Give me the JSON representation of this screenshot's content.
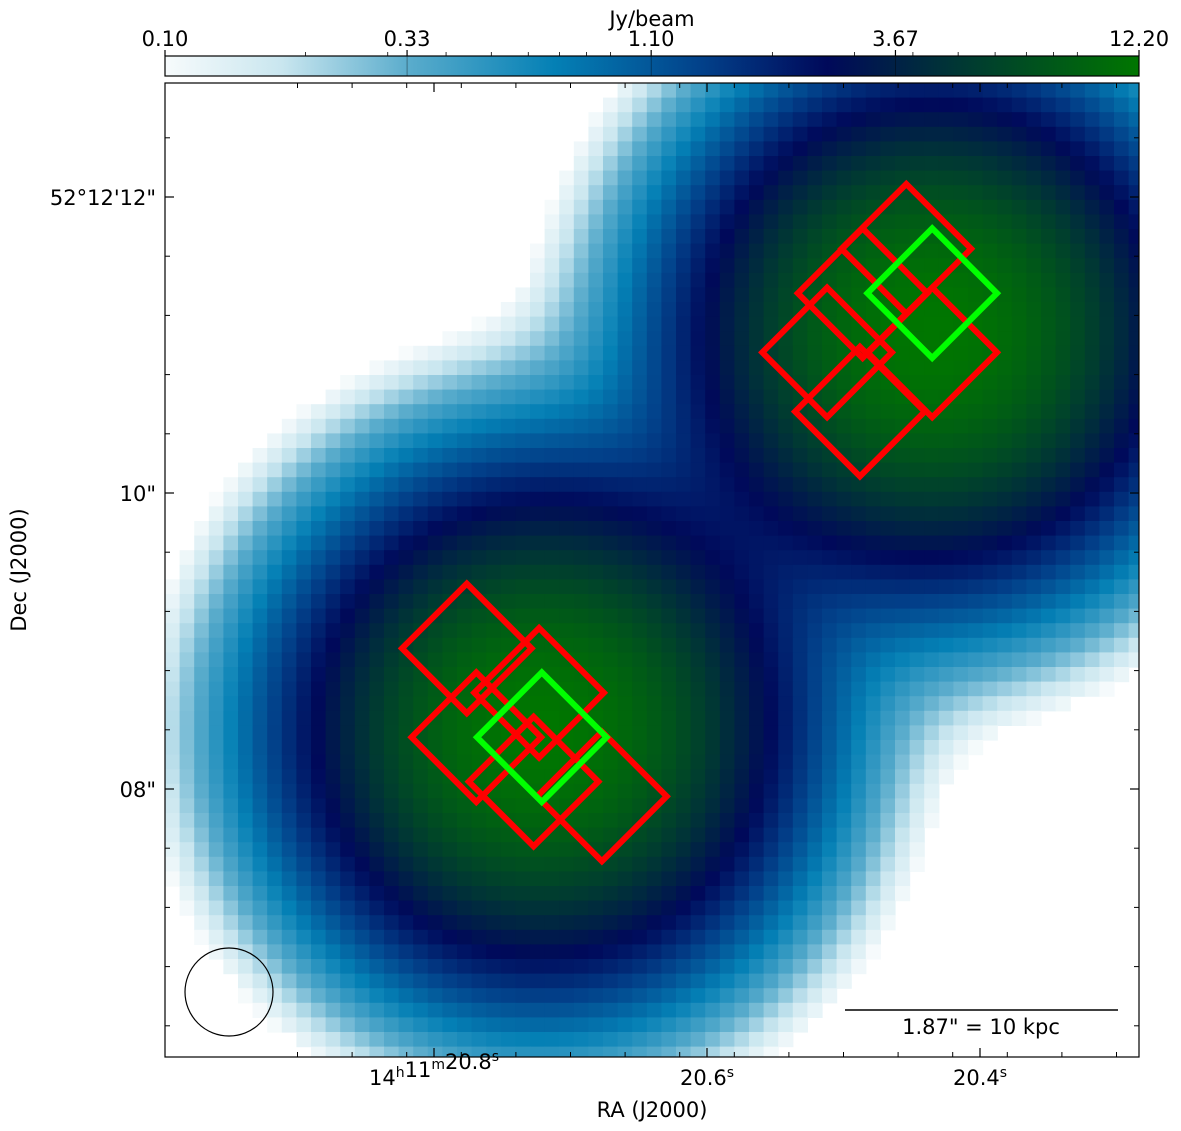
{
  "chart_data": {
    "type": "heatmap",
    "title": "",
    "xlabel": "RA (J2000)",
    "ylabel": "Dec (J2000)",
    "colorbar": {
      "label": "Jy/beam",
      "scale": "log",
      "min": 0.1,
      "max": 12.2,
      "ticks": [
        "0.10",
        "0.33",
        "1.10",
        "3.67",
        "12.20"
      ],
      "colors": [
        "#f7fbfc",
        "#9ccde0",
        "#1889b8",
        "#00559a",
        "#000b57",
        "#003a2e",
        "#007200"
      ]
    },
    "x_ticks": [
      {
        "pre": "14",
        "h": "h",
        "mid": "11",
        "m": "m",
        "post": "20.8",
        "s": "s"
      },
      {
        "pre": "",
        "h": "",
        "mid": "",
        "m": "",
        "post": "20.6",
        "s": "s"
      },
      {
        "pre": "",
        "h": "",
        "mid": "",
        "m": "",
        "post": "20.4",
        "s": "s"
      }
    ],
    "y_ticks": [
      "52°12'12\"",
      "10\"",
      "08\""
    ],
    "sources": [
      {
        "ra_s": 20.435,
        "dec_arcsec": 11.1,
        "peak": 12.2
      },
      {
        "ra_s": 20.721,
        "dec_arcsec": 8.4,
        "peak": 12.2
      }
    ],
    "fov_squares": {
      "outline_color": "#ff0000",
      "highlight_color": "#00ff00",
      "centers_group1": [
        [
          20.486,
          11.35
        ],
        [
          20.454,
          11.65
        ],
        [
          20.512,
          10.95
        ],
        [
          20.435,
          10.95
        ],
        [
          20.488,
          10.55
        ],
        [
          20.435,
          11.35
        ]
      ],
      "centers_group2": [
        [
          20.776,
          8.95
        ],
        [
          20.723,
          8.65
        ],
        [
          20.769,
          8.35
        ],
        [
          20.727,
          8.05
        ],
        [
          20.677,
          7.95
        ],
        [
          20.721,
          8.35
        ]
      ]
    },
    "scale_bar": {
      "label": "1.87\" = 10 kpc"
    },
    "beam": "ellipse"
  }
}
